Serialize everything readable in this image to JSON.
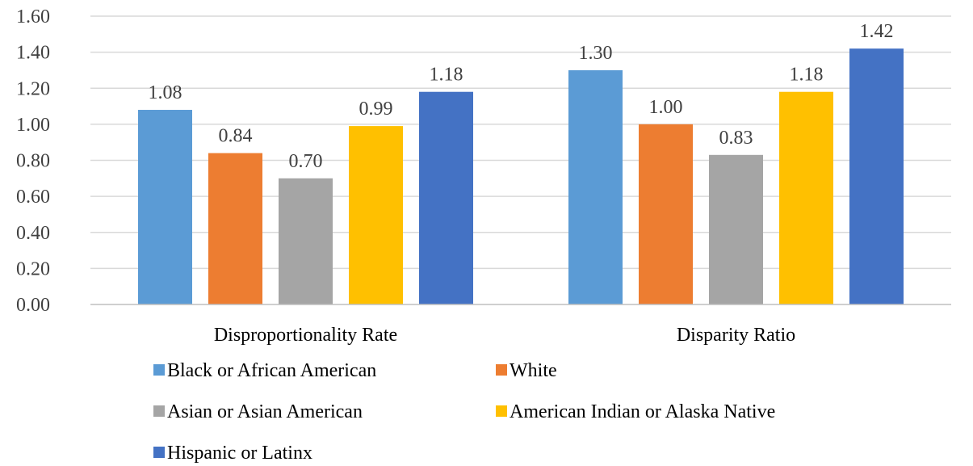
{
  "chart_data": {
    "type": "bar",
    "categories": [
      "Disproportionality Rate",
      "Disparity Ratio"
    ],
    "series": [
      {
        "name": "Black or African American",
        "values": [
          1.08,
          1.3
        ],
        "color": "#5B9BD5"
      },
      {
        "name": "White",
        "values": [
          0.84,
          1.0
        ],
        "color": "#ED7D31"
      },
      {
        "name": "Asian or Asian American",
        "values": [
          0.7,
          0.83
        ],
        "color": "#A5A5A5"
      },
      {
        "name": "American Indian or Alaska Native",
        "values": [
          0.99,
          1.18
        ],
        "color": "#FFC000"
      },
      {
        "name": "Hispanic or Latinx",
        "values": [
          1.18,
          1.42
        ],
        "color": "#4472C4"
      }
    ],
    "ylim": [
      0,
      1.6
    ],
    "yticks": [
      "0.00",
      "0.20",
      "0.40",
      "0.60",
      "0.80",
      "1.00",
      "1.20",
      "1.40",
      "1.60"
    ],
    "data_labels": [
      [
        "1.08",
        "1.30"
      ],
      [
        "0.84",
        "1.00"
      ],
      [
        "0.70",
        "0.83"
      ],
      [
        "0.99",
        "1.18"
      ],
      [
        "1.18",
        "1.42"
      ]
    ],
    "grid": true,
    "legend": "bottom",
    "title": "",
    "xlabel": "",
    "ylabel": ""
  }
}
